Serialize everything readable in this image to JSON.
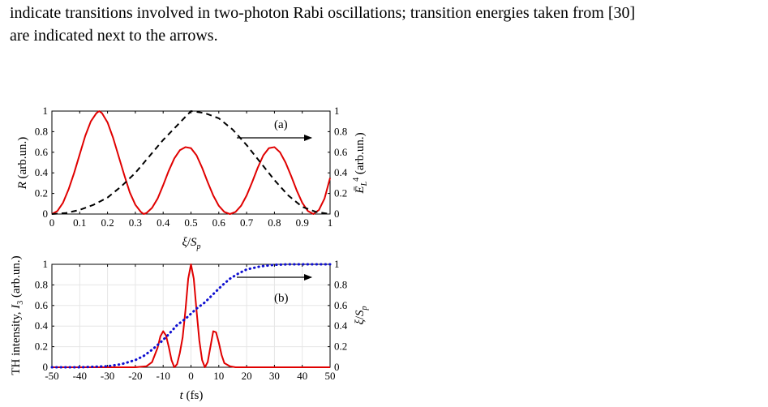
{
  "caption": {
    "line1": "indicate transitions involved in two-photon Rabi oscillations; transition energies taken from [30]",
    "line2": "are indicated next to the arrows."
  },
  "chart_data": [
    {
      "type": "line",
      "panel_label": "(a)",
      "xlabel": "ξ/S_p",
      "ylabel_left": "R (arb.un.)",
      "ylabel_right": "Ē_L⁴ (arb.un.)",
      "xlim": [
        0,
        1
      ],
      "ylim_left": [
        0,
        1
      ],
      "ylim_right": [
        0,
        1
      ],
      "x_ticks": [
        "0",
        "0.1",
        "0.2",
        "0.3",
        "0.4",
        "0.5",
        "0.6",
        "0.7",
        "0.8",
        "0.9",
        "1"
      ],
      "y_ticks_left": [
        "0",
        "0.2",
        "0.4",
        "0.6",
        "0.8",
        "1"
      ],
      "y_ticks_right": [
        "0",
        "0.2",
        "0.4",
        "0.6",
        "0.8",
        "1"
      ],
      "grid": false,
      "series": [
        {
          "axis": "left",
          "color": "#e00000",
          "style": "solid",
          "x": [
            0.0,
            0.02,
            0.04,
            0.06,
            0.08,
            0.1,
            0.12,
            0.14,
            0.16,
            0.17,
            0.18,
            0.2,
            0.22,
            0.24,
            0.26,
            0.28,
            0.3,
            0.32,
            0.33,
            0.34,
            0.36,
            0.38,
            0.4,
            0.42,
            0.44,
            0.46,
            0.48,
            0.5,
            0.52,
            0.54,
            0.56,
            0.58,
            0.6,
            0.62,
            0.64,
            0.66,
            0.68,
            0.7,
            0.72,
            0.74,
            0.76,
            0.78,
            0.8,
            0.82,
            0.84,
            0.86,
            0.88,
            0.9,
            0.92,
            0.94,
            0.96,
            0.98,
            1.0
          ],
          "y": [
            0.0,
            0.03,
            0.11,
            0.24,
            0.4,
            0.58,
            0.76,
            0.9,
            0.98,
            1.0,
            0.98,
            0.89,
            0.74,
            0.56,
            0.38,
            0.21,
            0.09,
            0.02,
            0.0,
            0.01,
            0.06,
            0.15,
            0.28,
            0.42,
            0.54,
            0.62,
            0.65,
            0.64,
            0.57,
            0.45,
            0.31,
            0.18,
            0.08,
            0.02,
            0.0,
            0.02,
            0.08,
            0.18,
            0.31,
            0.45,
            0.57,
            0.64,
            0.65,
            0.6,
            0.5,
            0.37,
            0.23,
            0.11,
            0.03,
            0.0,
            0.04,
            0.15,
            0.35
          ]
        },
        {
          "axis": "right",
          "color": "#000000",
          "style": "dashed",
          "x": [
            0.0,
            0.05,
            0.1,
            0.15,
            0.2,
            0.25,
            0.3,
            0.35,
            0.4,
            0.45,
            0.5,
            0.55,
            0.6,
            0.65,
            0.7,
            0.75,
            0.8,
            0.85,
            0.9,
            0.95,
            1.0
          ],
          "y": [
            0.0,
            0.01,
            0.04,
            0.09,
            0.16,
            0.27,
            0.4,
            0.56,
            0.72,
            0.86,
            1.0,
            0.98,
            0.93,
            0.82,
            0.67,
            0.5,
            0.33,
            0.18,
            0.07,
            0.02,
            0.0
          ]
        }
      ]
    },
    {
      "type": "line",
      "panel_label": "(b)",
      "xlabel": "t (fs)",
      "ylabel_left": "TH intensity, I₃ (arb.un.)",
      "ylabel_right": "ξ/S_p",
      "xlim": [
        -50,
        50
      ],
      "ylim_left": [
        0,
        1
      ],
      "ylim_right": [
        0,
        1
      ],
      "x_ticks": [
        "-50",
        "-40",
        "-30",
        "-20",
        "-10",
        "0",
        "10",
        "20",
        "30",
        "40",
        "50"
      ],
      "y_ticks_left": [
        "0",
        "0.2",
        "0.4",
        "0.6",
        "0.8",
        "1"
      ],
      "y_ticks_right": [
        "0",
        "0.2",
        "0.4",
        "0.6",
        "0.8",
        "1"
      ],
      "grid": true,
      "series": [
        {
          "axis": "left",
          "color": "#e00000",
          "style": "solid",
          "x": [
            -50,
            -20,
            -16,
            -14,
            -12,
            -11,
            -10,
            -9,
            -8,
            -7,
            -6,
            -5,
            -4,
            -3,
            -2,
            -1,
            0,
            1,
            2,
            3,
            4,
            5,
            6,
            7,
            8,
            9,
            10,
            11,
            12,
            14,
            16,
            20,
            50
          ],
          "y": [
            0.0,
            0.0,
            0.01,
            0.05,
            0.19,
            0.3,
            0.35,
            0.31,
            0.2,
            0.07,
            0.0,
            0.03,
            0.14,
            0.29,
            0.55,
            0.86,
            1.0,
            0.86,
            0.55,
            0.26,
            0.07,
            0.0,
            0.05,
            0.2,
            0.35,
            0.34,
            0.24,
            0.12,
            0.04,
            0.01,
            0.0,
            0.0,
            0.0
          ]
        },
        {
          "axis": "right",
          "color": "#1010d0",
          "style": "dotted",
          "x": [
            -50,
            -40,
            -35,
            -30,
            -25,
            -20,
            -17,
            -14,
            -11,
            -8,
            -5,
            -2,
            0,
            2,
            5,
            8,
            11,
            14,
            17,
            20,
            25,
            30,
            35,
            40,
            50
          ],
          "y": [
            0.0,
            0.0,
            0.005,
            0.01,
            0.03,
            0.07,
            0.11,
            0.17,
            0.24,
            0.32,
            0.41,
            0.47,
            0.52,
            0.57,
            0.63,
            0.71,
            0.79,
            0.86,
            0.91,
            0.95,
            0.98,
            0.995,
            1.0,
            1.0,
            1.0
          ]
        }
      ]
    }
  ],
  "colors": {
    "red": "#e00000",
    "blue": "#1010d0",
    "black": "#000000"
  }
}
